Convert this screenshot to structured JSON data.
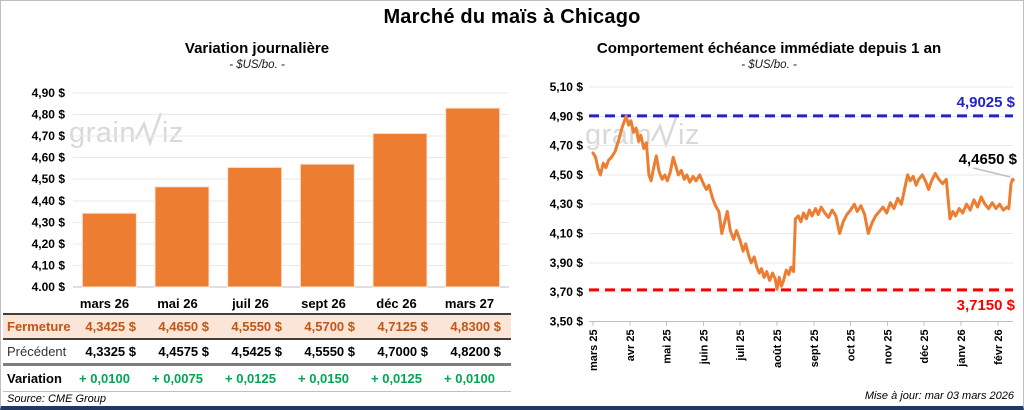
{
  "header": {
    "title": "Marché du maïs à Chicago"
  },
  "notes": {
    "source": "Source: CME Group",
    "update": "Mise à jour: mar 03 mars 2026"
  },
  "watermark": {
    "prefix": "grain",
    "suffix": "iz"
  },
  "colors": {
    "orange": "#ED7D31",
    "bar_stroke": "#FBE5D6",
    "blue": "#2323CB",
    "red": "#FF0000",
    "green": "#00A651",
    "fermeture_bg": "#FBE5D6",
    "fermeture_text": "#C0561A",
    "grid": "#E9E9E9",
    "axis": "#BFBFBF",
    "leader": "#BFBFBF",
    "navy_border": "#1F3864",
    "watermark": "#D9D9D9"
  },
  "table": {
    "columns": [
      "mars 26",
      "mai 26",
      "juil 26",
      "sept 26",
      "déc 26",
      "mars 27"
    ],
    "rows": [
      {
        "label": "Fermeture",
        "style": "fermeture",
        "values": [
          "4,3425 $",
          "4,4650 $",
          "4,5550 $",
          "4,5700 $",
          "4,7125 $",
          "4,8300 $"
        ]
      },
      {
        "label": "Précédent",
        "style": "precedent",
        "values": [
          "4,3325 $",
          "4,4575 $",
          "4,5425 $",
          "4,5550 $",
          "4,7000 $",
          "4,8200 $"
        ]
      },
      {
        "label": "Variation",
        "style": "variation",
        "values": [
          "+ 0,0100",
          "+ 0,0075",
          "+ 0,0125",
          "+ 0,0150",
          "+ 0,0125",
          "+ 0,0100"
        ]
      }
    ]
  },
  "chart_data": [
    {
      "type": "bar",
      "title": "Variation journalière",
      "subtitle": "- $US/bo. -",
      "categories": [
        "mars 26",
        "mai 26",
        "juil 26",
        "sept 26",
        "déc 26",
        "mars 27"
      ],
      "values": [
        4.3425,
        4.465,
        4.555,
        4.57,
        4.7125,
        4.83
      ],
      "ylabel": "$US/bo.",
      "ylim": [
        4.0,
        4.9
      ],
      "ytick_step": 0.1,
      "grid": true,
      "bar_color": "#ED7D31"
    },
    {
      "type": "line",
      "title": "Comportement échéance immédiate depuis 1 an",
      "subtitle": "- $US/bo. -",
      "ylabel": "$US/bo.",
      "ylim": [
        3.5,
        5.1
      ],
      "ytick_step": 0.2,
      "grid": true,
      "x_labels": [
        "mars 25",
        "avr 25",
        "mai 25",
        "juin 25",
        "juil 25",
        "août 25",
        "sept 25",
        "oct 25",
        "nov 25",
        "déc 25",
        "janv 26",
        "févr 26"
      ],
      "resistance": {
        "value": 4.9025,
        "label": "4,9025 $"
      },
      "support": {
        "value": 3.715,
        "label": "3,7150 $"
      },
      "last": {
        "value": 4.465,
        "label": "4,4650 $"
      },
      "series": [
        {
          "name": "échéance immédiate",
          "points": [
            [
              0.0,
              4.65
            ],
            [
              0.07,
              4.62
            ],
            [
              0.13,
              4.55
            ],
            [
              0.2,
              4.5
            ],
            [
              0.28,
              4.58
            ],
            [
              0.35,
              4.55
            ],
            [
              0.42,
              4.6
            ],
            [
              0.5,
              4.62
            ],
            [
              0.6,
              4.66
            ],
            [
              0.7,
              4.74
            ],
            [
              0.8,
              4.83
            ],
            [
              0.9,
              4.9
            ],
            [
              0.97,
              4.84
            ],
            [
              1.03,
              4.87
            ],
            [
              1.1,
              4.79
            ],
            [
              1.17,
              4.82
            ],
            [
              1.24,
              4.73
            ],
            [
              1.3,
              4.77
            ],
            [
              1.38,
              4.68
            ],
            [
              1.45,
              4.72
            ],
            [
              1.52,
              4.5
            ],
            [
              1.58,
              4.46
            ],
            [
              1.65,
              4.55
            ],
            [
              1.72,
              4.63
            ],
            [
              1.8,
              4.52
            ],
            [
              1.88,
              4.47
            ],
            [
              1.95,
              4.5
            ],
            [
              2.02,
              4.46
            ],
            [
              2.1,
              4.52
            ],
            [
              2.18,
              4.62
            ],
            [
              2.25,
              4.56
            ],
            [
              2.32,
              4.5
            ],
            [
              2.4,
              4.53
            ],
            [
              2.48,
              4.47
            ],
            [
              2.55,
              4.5
            ],
            [
              2.63,
              4.45
            ],
            [
              2.72,
              4.49
            ],
            [
              2.8,
              4.46
            ],
            [
              2.9,
              4.5
            ],
            [
              3.0,
              4.44
            ],
            [
              3.08,
              4.4
            ],
            [
              3.15,
              4.43
            ],
            [
              3.25,
              4.34
            ],
            [
              3.33,
              4.29
            ],
            [
              3.42,
              4.25
            ],
            [
              3.5,
              4.1
            ],
            [
              3.58,
              4.18
            ],
            [
              3.65,
              4.25
            ],
            [
              3.73,
              4.12
            ],
            [
              3.82,
              4.06
            ],
            [
              3.9,
              4.12
            ],
            [
              4.0,
              4.05
            ],
            [
              4.08,
              3.98
            ],
            [
              4.15,
              4.03
            ],
            [
              4.23,
              3.95
            ],
            [
              4.3,
              3.9
            ],
            [
              4.38,
              3.94
            ],
            [
              4.45,
              3.87
            ],
            [
              4.52,
              3.83
            ],
            [
              4.58,
              3.86
            ],
            [
              4.65,
              3.8
            ],
            [
              4.72,
              3.84
            ],
            [
              4.8,
              3.78
            ],
            [
              4.88,
              3.83
            ],
            [
              4.95,
              3.79
            ],
            [
              5.0,
              3.72
            ],
            [
              5.06,
              3.8
            ],
            [
              5.12,
              3.74
            ],
            [
              5.18,
              3.78
            ],
            [
              5.25,
              3.85
            ],
            [
              5.32,
              3.82
            ],
            [
              5.38,
              3.87
            ],
            [
              5.45,
              3.84
            ],
            [
              5.5,
              4.2
            ],
            [
              5.58,
              4.22
            ],
            [
              5.65,
              4.18
            ],
            [
              5.72,
              4.24
            ],
            [
              5.8,
              4.2
            ],
            [
              5.88,
              4.26
            ],
            [
              5.95,
              4.22
            ],
            [
              6.05,
              4.27
            ],
            [
              6.12,
              4.23
            ],
            [
              6.2,
              4.28
            ],
            [
              6.3,
              4.24
            ],
            [
              6.4,
              4.21
            ],
            [
              6.5,
              4.26
            ],
            [
              6.6,
              4.22
            ],
            [
              6.7,
              4.1
            ],
            [
              6.8,
              4.18
            ],
            [
              6.9,
              4.23
            ],
            [
              7.0,
              4.26
            ],
            [
              7.1,
              4.3
            ],
            [
              7.18,
              4.25
            ],
            [
              7.28,
              4.29
            ],
            [
              7.38,
              4.23
            ],
            [
              7.48,
              4.1
            ],
            [
              7.58,
              4.17
            ],
            [
              7.68,
              4.22
            ],
            [
              7.78,
              4.25
            ],
            [
              7.88,
              4.28
            ],
            [
              7.98,
              4.24
            ],
            [
              8.08,
              4.31
            ],
            [
              8.18,
              4.27
            ],
            [
              8.28,
              4.34
            ],
            [
              8.38,
              4.3
            ],
            [
              8.48,
              4.42
            ],
            [
              8.55,
              4.5
            ],
            [
              8.62,
              4.46
            ],
            [
              8.7,
              4.49
            ],
            [
              8.78,
              4.43
            ],
            [
              8.85,
              4.47
            ],
            [
              8.95,
              4.5
            ],
            [
              9.05,
              4.45
            ],
            [
              9.12,
              4.4
            ],
            [
              9.2,
              4.46
            ],
            [
              9.3,
              4.51
            ],
            [
              9.4,
              4.47
            ],
            [
              9.5,
              4.44
            ],
            [
              9.6,
              4.47
            ],
            [
              9.7,
              4.2
            ],
            [
              9.78,
              4.25
            ],
            [
              9.85,
              4.22
            ],
            [
              9.95,
              4.27
            ],
            [
              10.05,
              4.24
            ],
            [
              10.15,
              4.3
            ],
            [
              10.25,
              4.26
            ],
            [
              10.35,
              4.33
            ],
            [
              10.45,
              4.28
            ],
            [
              10.55,
              4.35
            ],
            [
              10.65,
              4.3
            ],
            [
              10.75,
              4.27
            ],
            [
              10.85,
              4.31
            ],
            [
              10.95,
              4.27
            ],
            [
              11.05,
              4.3
            ],
            [
              11.15,
              4.26
            ],
            [
              11.25,
              4.28
            ],
            [
              11.3,
              4.27
            ],
            [
              11.36,
              4.44
            ],
            [
              11.4,
              4.47
            ],
            [
              11.42,
              4.465
            ]
          ]
        }
      ]
    }
  ]
}
